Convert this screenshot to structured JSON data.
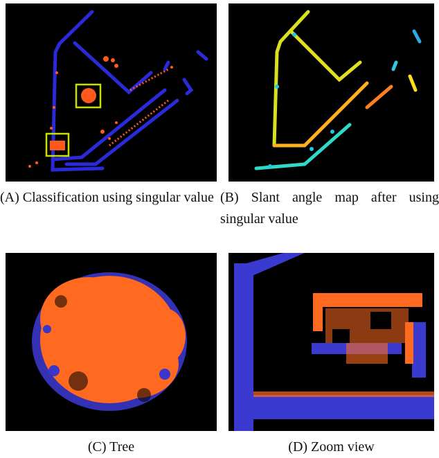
{
  "panels": [
    {
      "caption": "(A) Classification using singular value"
    },
    {
      "caption": "(B) Slant angle map after using singular value"
    },
    {
      "caption": "(C) Tree"
    },
    {
      "caption": "(D) Zoom view"
    }
  ]
}
